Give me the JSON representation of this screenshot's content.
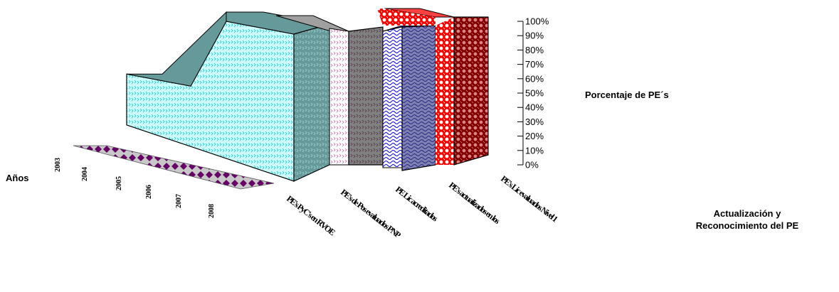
{
  "chart_data": {
    "type": "area",
    "subtype": "3d-area",
    "ylabel": "Porcentaje de PE´s",
    "xlabel": "Actualización y\nReconocimiento del PE",
    "zlabel": "Años",
    "ylim": [
      0,
      100
    ],
    "yticks": [
      "0%",
      "10%",
      "20%",
      "30%",
      "40%",
      "50%",
      "60%",
      "70%",
      "80%",
      "90%",
      "100%"
    ],
    "categories": [
      "PE's PyC's en RVOE",
      "PE's de Pos evaluados PNP",
      "PE Lic acreditados",
      "PE's actualizados en los",
      "PE's Lic evaluados Nivel 1"
    ],
    "categories_shown": [
      "PE's PyC's en RVOE",
      "PE's de Pos evaluados PNP",
      "PE Lic acreditados",
      "PE's actualizados en los",
      "PE's Lic evaluados Nivel 1"
    ],
    "years": [
      "2003",
      "2004",
      "2005",
      "2006",
      "2007",
      "2008"
    ],
    "series": [
      {
        "name": "2003",
        "values": [
          65,
          100,
          100,
          98,
          100
        ]
      },
      {
        "name": "2004",
        "values": [
          0,
          0,
          0,
          0,
          0
        ]
      },
      {
        "name": "2005",
        "values": [
          0,
          0,
          0,
          0,
          0
        ]
      },
      {
        "name": "2006",
        "values": [
          0,
          0,
          0,
          0,
          0
        ]
      },
      {
        "name": "2007",
        "values": [
          0,
          0,
          0,
          0,
          0
        ]
      },
      {
        "name": "2008",
        "values": [
          0,
          0,
          0,
          0,
          0
        ]
      }
    ],
    "colors": {
      "band1_light": "#ccffff",
      "band1_dark": "#669999",
      "band1_pattern": "#33cccc",
      "band2_light": "#ffe6f0",
      "band2_dark": "#808080",
      "band2_pattern": "#993366",
      "band3_light": "#e6e6ff",
      "band3_dark": "#333399",
      "band3_pattern": "#0000ff",
      "band4_light": "#ff0000",
      "band4_dark": "#800000",
      "band4_pattern": "#ffffff",
      "floor_series": "#660066"
    }
  }
}
